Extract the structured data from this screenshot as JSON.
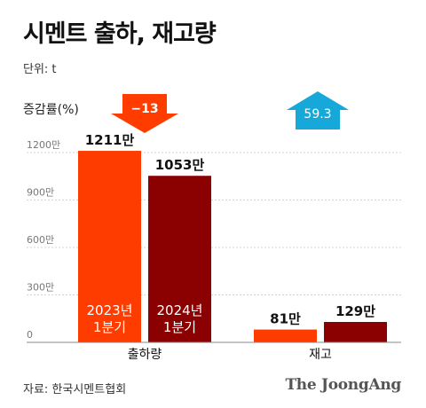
{
  "header": {
    "title": "시멘트 출하, 재고량",
    "unit": "단위: t",
    "change_label": "증감률(%)"
  },
  "footer": {
    "source": "자료: 한국시멘트협회",
    "logo": "The JoongAng"
  },
  "chart_data": {
    "type": "bar",
    "title": "시멘트 출하, 재고량",
    "unit": "t",
    "categories": [
      "출하량",
      "재고"
    ],
    "series": [
      {
        "name": "2023년 1분기",
        "values": [
          12110000,
          810000
        ],
        "labels": [
          "1211만",
          "81만"
        ],
        "color": "#ff3c00"
      },
      {
        "name": "2024년 1분기",
        "values": [
          10530000,
          1290000
        ],
        "labels": [
          "1053만",
          "129만"
        ],
        "color": "#8b0000"
      }
    ],
    "in_bar_labels": [
      [
        "2023년",
        "1분기"
      ],
      [
        "2024년",
        "1분기"
      ]
    ],
    "changes": [
      {
        "category": "출하량",
        "value": -13,
        "label": "−13",
        "direction": "down",
        "color": "#ff3c00"
      },
      {
        "category": "재고",
        "value": 59.3,
        "label": "59.3",
        "direction": "up",
        "color": "#15a8d8"
      }
    ],
    "yticks": [
      {
        "value": 0,
        "label": "0"
      },
      {
        "value": 3000000,
        "label": "300만"
      },
      {
        "value": 6000000,
        "label": "600만"
      },
      {
        "value": 9000000,
        "label": "900만"
      },
      {
        "value": 12000000,
        "label": "1200만"
      }
    ],
    "ylim": [
      0,
      12000000
    ],
    "grid": true,
    "colors": {
      "grid": "#d4d4d4",
      "axis": "#888888",
      "tick_text": "#777777",
      "arrow_text": "#ffffff"
    }
  }
}
